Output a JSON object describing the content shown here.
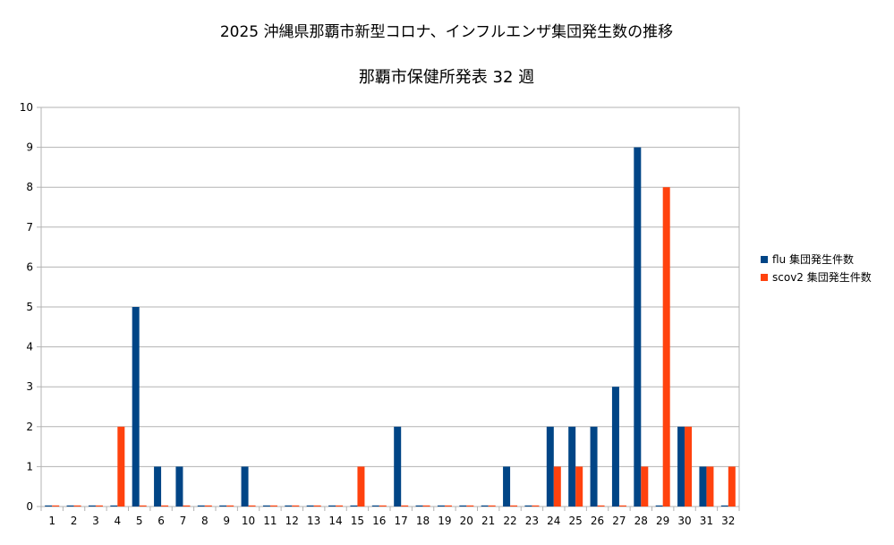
{
  "chart_data": {
    "type": "bar",
    "title": "2025 沖縄県那覇市新型コロナ、インフルエンザ集団発生数の推移",
    "subtitle": "那覇市保健所発表 32 週",
    "xlabel": "",
    "ylabel": "",
    "ylim": [
      0,
      10
    ],
    "yticks": [
      "0",
      "1",
      "2",
      "3",
      "4",
      "5",
      "6",
      "7",
      "8",
      "9",
      "10"
    ],
    "grid": true,
    "legend_position": "right",
    "categories": [
      "1",
      "2",
      "3",
      "4",
      "5",
      "6",
      "7",
      "8",
      "9",
      "10",
      "11",
      "12",
      "13",
      "14",
      "15",
      "16",
      "17",
      "18",
      "19",
      "20",
      "21",
      "22",
      "23",
      "24",
      "25",
      "26",
      "27",
      "28",
      "29",
      "30",
      "31",
      "32"
    ],
    "series": [
      {
        "name": "flu 集団発生件数",
        "color": "#004586",
        "values": [
          0,
          0,
          0,
          0,
          5,
          1,
          1,
          0,
          0,
          1,
          0,
          0,
          0,
          0,
          0,
          0,
          2,
          0,
          0,
          0,
          0,
          1,
          0,
          2,
          2,
          2,
          3,
          9,
          0,
          2,
          1,
          0
        ]
      },
      {
        "name": "scov2 集団発生件数",
        "color": "#ff420e",
        "values": [
          0,
          0,
          0,
          2,
          0,
          0,
          0,
          0,
          0,
          0,
          0,
          0,
          0,
          0,
          1,
          0,
          0,
          0,
          0,
          0,
          0,
          0,
          0,
          1,
          1,
          0,
          0,
          1,
          8,
          2,
          1,
          1
        ]
      }
    ]
  }
}
